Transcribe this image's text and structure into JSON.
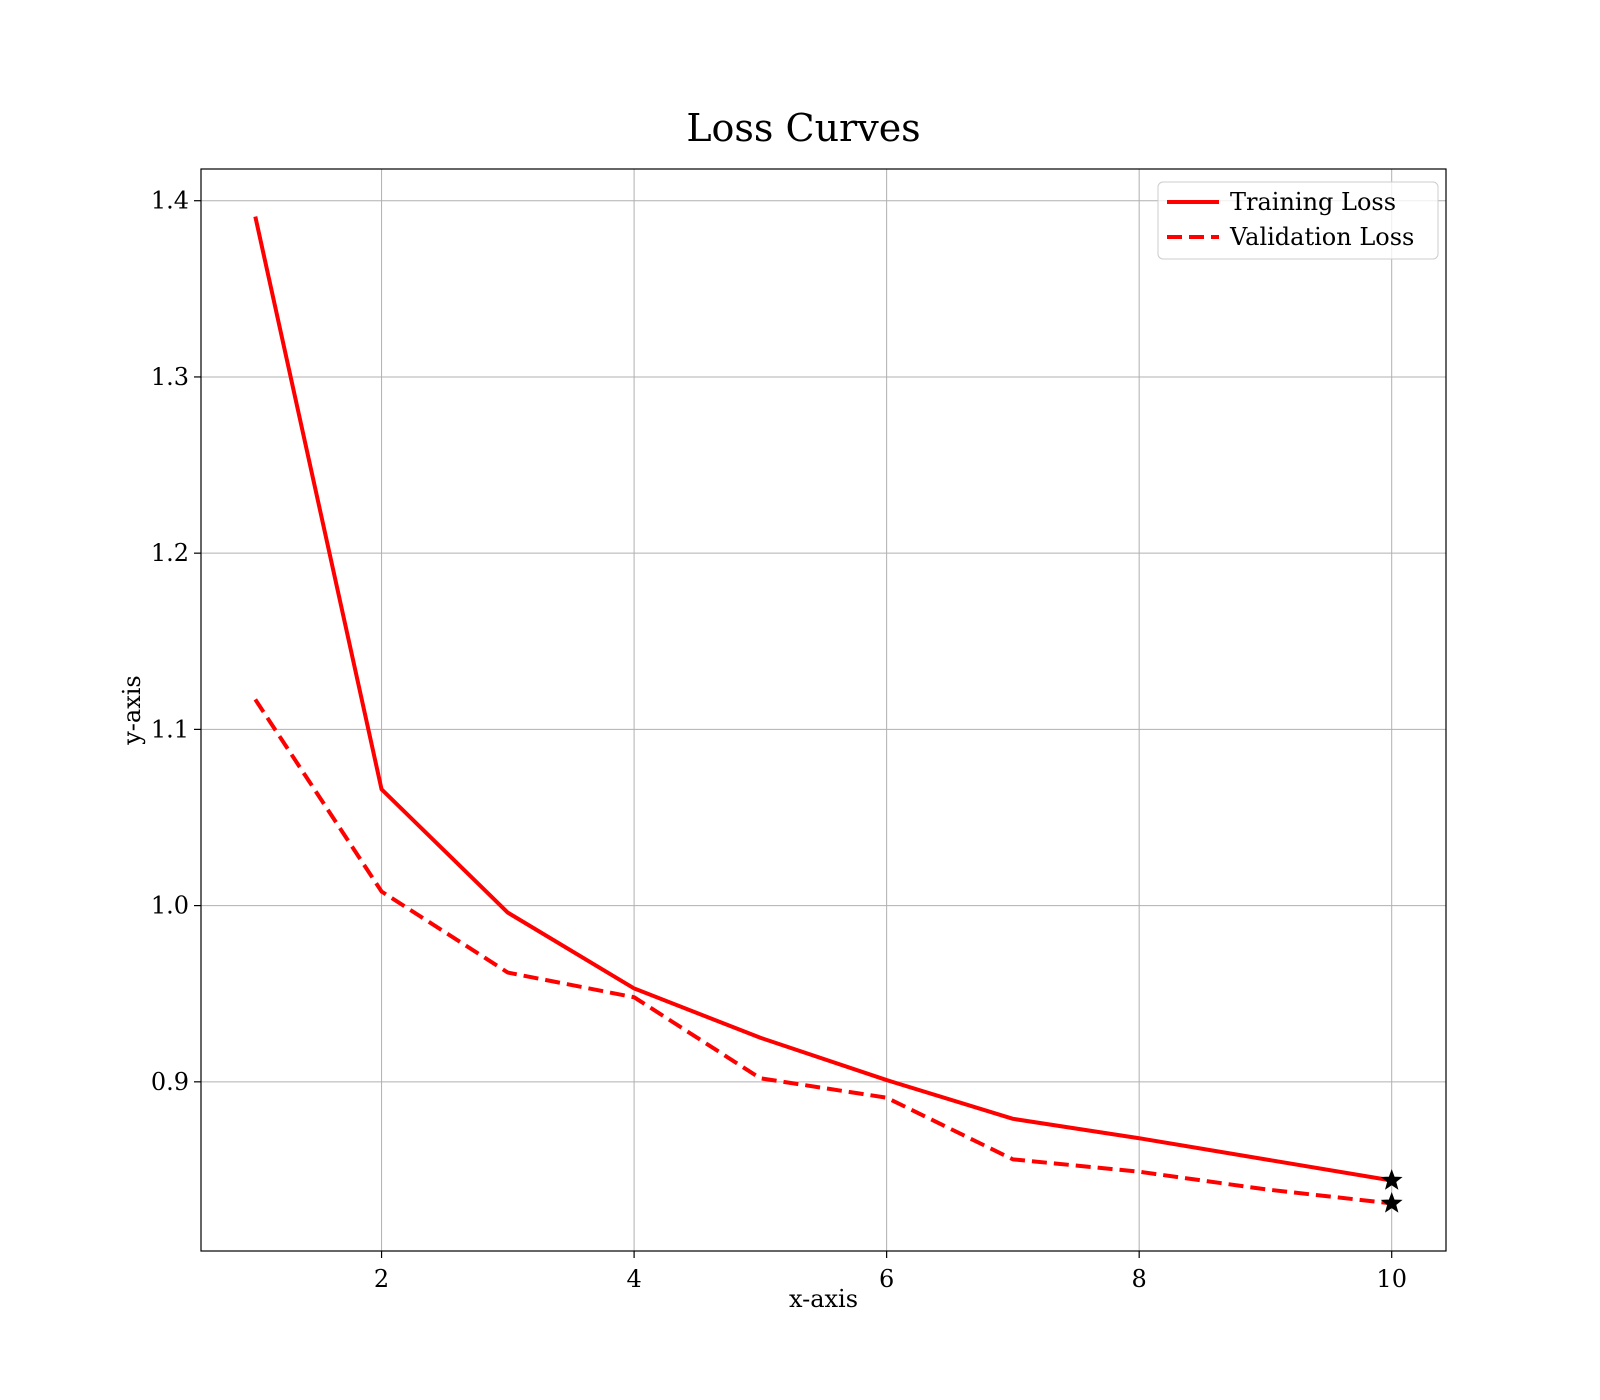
{
  "chart_data": {
    "type": "line",
    "title": "Loss Curves",
    "xlabel": "x-axis",
    "ylabel": "y-axis",
    "xlim": [
      0.57,
      10.43
    ],
    "ylim": [
      0.804,
      1.418
    ],
    "xticks": [
      2,
      4,
      6,
      8,
      10
    ],
    "xtick_labels": [
      "2",
      "4",
      "6",
      "8",
      "10"
    ],
    "yticks": [
      0.9,
      1.0,
      1.1,
      1.2,
      1.3,
      1.4
    ],
    "ytick_labels": [
      "0.9",
      "1.0",
      "1.1",
      "1.2",
      "1.3",
      "1.4"
    ],
    "grid": true,
    "legend_position": "top-right",
    "x": [
      1,
      2,
      3,
      4,
      5,
      6,
      7,
      8,
      9,
      10
    ],
    "series": [
      {
        "name": "Training Loss",
        "values": [
          1.391,
          1.066,
          0.996,
          0.953,
          0.925,
          0.901,
          0.879,
          0.868,
          0.856,
          0.844
        ],
        "color": "#ff0000",
        "style": "solid",
        "end_marker": "star"
      },
      {
        "name": "Validation Loss",
        "values": [
          1.117,
          1.008,
          0.962,
          0.948,
          0.902,
          0.891,
          0.856,
          0.849,
          0.839,
          0.831
        ],
        "color": "#ff0000",
        "style": "dashed",
        "end_marker": "star"
      }
    ]
  }
}
